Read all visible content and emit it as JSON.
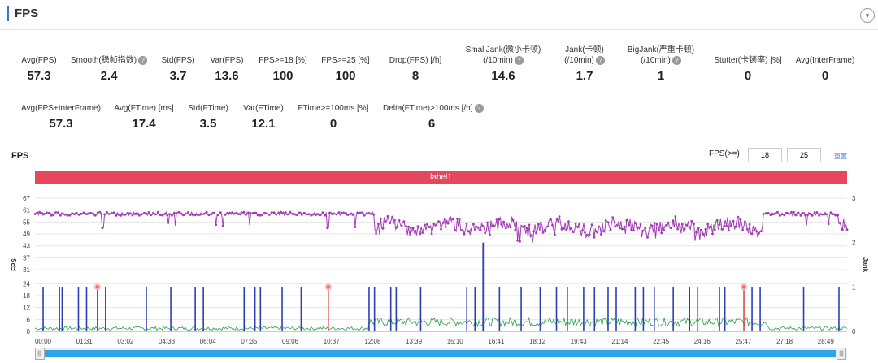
{
  "header": {
    "title": "FPS",
    "toggle_glyph": "▾"
  },
  "metrics_row1": [
    {
      "label": "Avg(FPS)",
      "value": "57.3",
      "help": false
    },
    {
      "label": "Smooth(稳帧指数)",
      "value": "2.4",
      "help": true
    },
    {
      "label": "Std(FPS)",
      "value": "3.7",
      "help": false
    },
    {
      "label": "Var(FPS)",
      "value": "13.6",
      "help": false
    },
    {
      "label": "FPS>=18 [%]",
      "value": "100",
      "help": false
    },
    {
      "label": "FPS>=25 [%]",
      "value": "100",
      "help": false
    },
    {
      "label": "Drop(FPS) [/h]",
      "value": "8",
      "help": false
    },
    {
      "label": "SmallJank(微小卡顿)",
      "label2": "(/10min)",
      "value": "14.6",
      "help": true
    },
    {
      "label": "Jank(卡顿)",
      "label2": "(/10min)",
      "value": "1.7",
      "help": true
    },
    {
      "label": "BigJank(严重卡顿)",
      "label2": "(/10min)",
      "value": "1",
      "help": true
    },
    {
      "label": "Stutter(卡顿率) [%]",
      "value": "0",
      "help": false
    },
    {
      "label": "Avg(InterFrame)",
      "value": "0",
      "help": false
    }
  ],
  "metrics_row2": [
    {
      "label": "Avg(FPS+InterFrame)",
      "value": "57.3",
      "help": false
    },
    {
      "label": "Avg(FTime) [ms]",
      "value": "17.4",
      "help": false
    },
    {
      "label": "Std(FTime)",
      "value": "3.5",
      "help": false
    },
    {
      "label": "Var(FTime)",
      "value": "12.1",
      "help": false
    },
    {
      "label": "FTime>=100ms [%]",
      "value": "0",
      "help": false
    },
    {
      "label": "Delta(FTime)>100ms [/h]",
      "value": "6",
      "help": true
    }
  ],
  "chart_section": {
    "title": "FPS",
    "threshold_label": "FPS(>=)",
    "threshold1": "18",
    "threshold2": "25",
    "reset_label": "重置",
    "label_bar": "label1"
  },
  "chart_data": {
    "type": "line",
    "ylabel": "FPS",
    "y2label": "Jank",
    "yticks": [
      0,
      6,
      12,
      18,
      24,
      31,
      37,
      43,
      49,
      55,
      61,
      67
    ],
    "y2ticks": [
      0,
      1,
      2,
      3
    ],
    "xticks": [
      "00:00",
      "01:31",
      "03:02",
      "04:33",
      "06:04",
      "07:35",
      "09:06",
      "10:37",
      "12:08",
      "13:39",
      "15:10",
      "16:41",
      "18:12",
      "19:43",
      "21:14",
      "22:45",
      "24:16",
      "25:47",
      "27:18",
      "28:49"
    ],
    "x_range_minutes": [
      0,
      29.9
    ],
    "series": [],
    "fps_approx": {
      "stable_segments_minutes": [
        [
          0,
          12.5
        ],
        [
          26.8,
          29.6
        ]
      ],
      "stable_value": 60,
      "fluctuating_range": [
        43,
        61
      ]
    },
    "jank_events_minutes": [
      0.3,
      0.9,
      1.0,
      1.6,
      1.9,
      2.3,
      2.6,
      4.1,
      5.0,
      5.9,
      6.2,
      7.7,
      8.1,
      8.3,
      9.1,
      9.8,
      12.3,
      12.5,
      13.1,
      13.3,
      14.2,
      15.9,
      16.2,
      17.1,
      17.9,
      18.6,
      19.2,
      19.6,
      20.2,
      20.6,
      21.1,
      21.4,
      22.1,
      22.4,
      22.8,
      23.5,
      24.1,
      24.4,
      25.2,
      25.4,
      26.4,
      26.7,
      28.3,
      29.6
    ],
    "big_jank_minutes": [
      16.5
    ],
    "red_markers_minutes": [
      2.3,
      10.8,
      26.1
    ],
    "colors": {
      "fps": "#a23cb5",
      "jank": "#2c3fb5",
      "frametime": "#2aa04a",
      "grid": "#e5e5e5",
      "label_bar": "#e5485c"
    }
  }
}
